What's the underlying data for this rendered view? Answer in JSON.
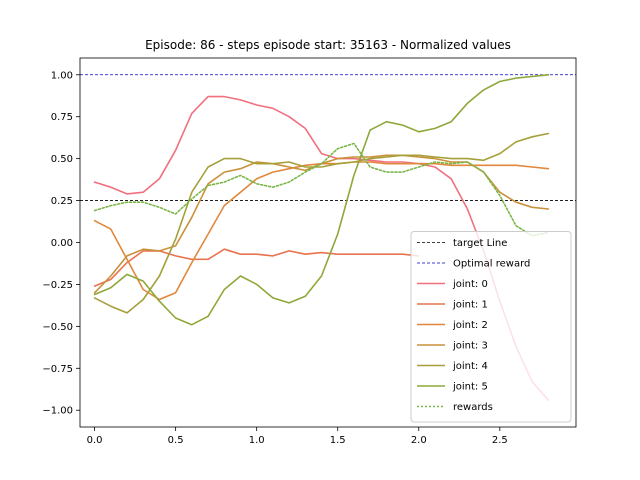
{
  "chart_data": {
    "type": "line",
    "title": "Episode: 86 - steps episode start: 35163 - Normalized values",
    "xlabel": "",
    "ylabel": "",
    "xlim": [
      -0.09,
      2.97
    ],
    "ylim": [
      -1.1,
      1.1
    ],
    "xticks": [
      0.0,
      0.5,
      1.0,
      1.5,
      2.0,
      2.5
    ],
    "xtick_labels": [
      "0.0",
      "0.5",
      "1.0",
      "1.5",
      "2.0",
      "2.5"
    ],
    "yticks": [
      1.0,
      0.75,
      0.5,
      0.25,
      0.0,
      -0.25,
      -0.5,
      -0.75,
      -1.0
    ],
    "ytick_labels": [
      "1.00",
      "0.75",
      "0.50",
      "0.25",
      "0.00",
      "−0.25",
      "−0.50",
      "−0.75",
      "−1.00"
    ],
    "grid": false,
    "legend_position": "bottom-right",
    "hlines": [
      {
        "name": "target Line",
        "y": 0.25,
        "color": "#000000"
      },
      {
        "name": "Optimal reward",
        "y": 1.0,
        "color": "#0000cc"
      }
    ],
    "series": [
      {
        "name": "joint: 0",
        "color": "#f0707e",
        "dash": "",
        "x": [
          0.0,
          0.1,
          0.2,
          0.3,
          0.4,
          0.5,
          0.6,
          0.7,
          0.8,
          0.9,
          1.0,
          1.1,
          1.2,
          1.3,
          1.4,
          1.5,
          1.6,
          1.7,
          1.8,
          1.9,
          2.0,
          2.1,
          2.2,
          2.3,
          2.4,
          2.5,
          2.6,
          2.7,
          2.8
        ],
        "y": [
          0.36,
          0.33,
          0.29,
          0.3,
          0.38,
          0.55,
          0.77,
          0.87,
          0.87,
          0.85,
          0.82,
          0.8,
          0.75,
          0.68,
          0.53,
          0.5,
          0.5,
          0.49,
          0.48,
          0.48,
          0.47,
          0.45,
          0.38,
          0.2,
          -0.05,
          -0.35,
          -0.62,
          -0.83,
          -0.94
        ]
      },
      {
        "name": "joint: 1",
        "color": "#e8734f",
        "dash": "",
        "x": [
          0.0,
          0.1,
          0.2,
          0.3,
          0.4,
          0.5,
          0.6,
          0.7,
          0.8,
          0.9,
          1.0,
          1.1,
          1.2,
          1.3,
          1.4,
          1.5,
          1.6,
          1.7,
          1.8,
          1.9,
          2.0
        ],
        "y": [
          -0.26,
          -0.22,
          -0.12,
          -0.05,
          -0.05,
          -0.08,
          -0.1,
          -0.1,
          -0.04,
          -0.07,
          -0.07,
          -0.08,
          -0.05,
          -0.07,
          -0.06,
          -0.07,
          -0.07,
          -0.07,
          -0.07,
          -0.07,
          -0.08
        ]
      },
      {
        "name": "joint: 2",
        "color": "#e0883c",
        "dash": "",
        "x": [
          0.0,
          0.1,
          0.2,
          0.3,
          0.4,
          0.5,
          0.6,
          0.7,
          0.8,
          0.9,
          1.0,
          1.1,
          1.2,
          1.3,
          1.4,
          1.5,
          1.6,
          1.7,
          1.8,
          1.9,
          2.0,
          2.1,
          2.2,
          2.3,
          2.4,
          2.5,
          2.6,
          2.7,
          2.8
        ],
        "y": [
          0.13,
          0.08,
          -0.1,
          -0.28,
          -0.34,
          -0.3,
          -0.12,
          0.05,
          0.22,
          0.3,
          0.38,
          0.42,
          0.44,
          0.46,
          0.47,
          0.47,
          0.48,
          0.48,
          0.47,
          0.47,
          0.47,
          0.47,
          0.46,
          0.46,
          0.46,
          0.46,
          0.46,
          0.45,
          0.44
        ]
      },
      {
        "name": "joint: 3",
        "color": "#c9913a",
        "dash": "",
        "x": [
          0.0,
          0.1,
          0.2,
          0.3,
          0.4,
          0.5,
          0.6,
          0.7,
          0.8,
          0.9,
          1.0,
          1.1,
          1.2,
          1.3,
          1.4,
          1.5,
          1.6,
          1.7,
          1.8,
          1.9,
          2.0,
          2.1,
          2.2,
          2.3,
          2.4,
          2.5,
          2.6,
          2.7,
          2.8
        ],
        "y": [
          -0.3,
          -0.2,
          -0.08,
          -0.04,
          -0.05,
          -0.02,
          0.15,
          0.35,
          0.42,
          0.44,
          0.48,
          0.47,
          0.45,
          0.43,
          0.47,
          0.5,
          0.51,
          0.51,
          0.52,
          0.52,
          0.51,
          0.5,
          0.48,
          0.48,
          0.42,
          0.3,
          0.24,
          0.21,
          0.2
        ]
      },
      {
        "name": "joint: 4",
        "color": "#a5a03a",
        "dash": "",
        "x": [
          0.0,
          0.1,
          0.2,
          0.3,
          0.4,
          0.5,
          0.6,
          0.7,
          0.8,
          0.9,
          1.0,
          1.1,
          1.2,
          1.3,
          1.4,
          1.5,
          1.6,
          1.7,
          1.8,
          1.9,
          2.0,
          2.1,
          2.2,
          2.3,
          2.4,
          2.5,
          2.6,
          2.7,
          2.8
        ],
        "y": [
          -0.33,
          -0.38,
          -0.42,
          -0.34,
          -0.2,
          0.02,
          0.3,
          0.45,
          0.5,
          0.5,
          0.47,
          0.47,
          0.48,
          0.45,
          0.45,
          0.47,
          0.48,
          0.5,
          0.51,
          0.52,
          0.52,
          0.51,
          0.5,
          0.5,
          0.49,
          0.53,
          0.6,
          0.63,
          0.65
        ]
      },
      {
        "name": "joint: 5",
        "color": "#8ea83a",
        "dash": "",
        "x": [
          0.0,
          0.1,
          0.2,
          0.3,
          0.4,
          0.5,
          0.6,
          0.7,
          0.8,
          0.9,
          1.0,
          1.1,
          1.2,
          1.3,
          1.4,
          1.5,
          1.6,
          1.7,
          1.8,
          1.9,
          2.0,
          2.1,
          2.2,
          2.3,
          2.4,
          2.5,
          2.6,
          2.7,
          2.8
        ],
        "y": [
          -0.31,
          -0.27,
          -0.19,
          -0.23,
          -0.35,
          -0.45,
          -0.49,
          -0.44,
          -0.28,
          -0.2,
          -0.25,
          -0.33,
          -0.36,
          -0.32,
          -0.2,
          0.05,
          0.4,
          0.67,
          0.72,
          0.7,
          0.66,
          0.68,
          0.72,
          0.83,
          0.91,
          0.96,
          0.98,
          0.99,
          1.0
        ]
      },
      {
        "name": "rewards",
        "color": "#7ab648",
        "dash": "2,2",
        "x": [
          0.0,
          0.1,
          0.2,
          0.3,
          0.4,
          0.5,
          0.6,
          0.7,
          0.8,
          0.9,
          1.0,
          1.1,
          1.2,
          1.3,
          1.4,
          1.5,
          1.6,
          1.7,
          1.8,
          1.9,
          2.0,
          2.1,
          2.2,
          2.3,
          2.4,
          2.5,
          2.6,
          2.7,
          2.8
        ],
        "y": [
          0.19,
          0.22,
          0.24,
          0.24,
          0.21,
          0.17,
          0.26,
          0.34,
          0.36,
          0.4,
          0.35,
          0.33,
          0.36,
          0.42,
          0.47,
          0.56,
          0.59,
          0.45,
          0.42,
          0.42,
          0.45,
          0.48,
          0.47,
          0.48,
          0.42,
          0.28,
          0.1,
          0.04,
          0.06
        ]
      }
    ]
  }
}
